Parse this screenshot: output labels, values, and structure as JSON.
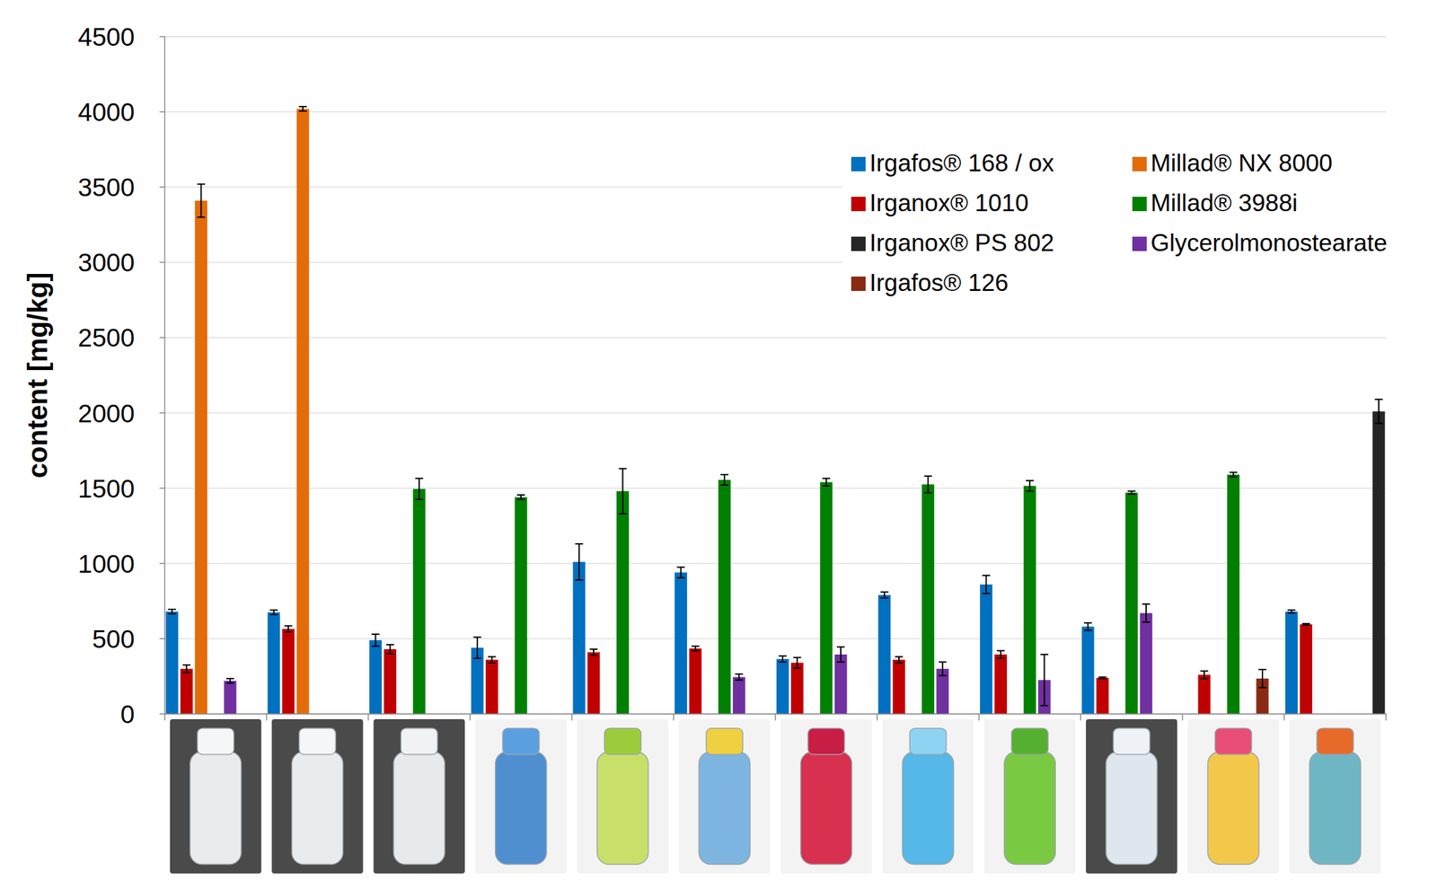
{
  "chart_data": {
    "type": "bar",
    "y_label": "content [mg/kg]",
    "categories": [
      null,
      null,
      null,
      null,
      null,
      null,
      null,
      null,
      null,
      null,
      null,
      null
    ],
    "series": [
      {
        "name": "Irgafos® 168 / ox",
        "color": "#0070c0",
        "values": [
          680,
          675,
          490,
          440,
          1010,
          940,
          365,
          790,
          860,
          580,
          null,
          680
        ],
        "errors": [
          15,
          15,
          40,
          70,
          120,
          35,
          20,
          20,
          60,
          25,
          null,
          10
        ]
      },
      {
        "name": "Irganox® 1010",
        "color": "#c00000",
        "values": [
          300,
          565,
          430,
          360,
          410,
          435,
          340,
          360,
          395,
          240,
          260,
          595
        ],
        "errors": [
          25,
          20,
          30,
          20,
          20,
          15,
          35,
          20,
          25,
          5,
          25,
          5
        ]
      },
      {
        "name": "Irganox® PS 802",
        "color": "#262626",
        "values": [
          null,
          null,
          null,
          null,
          null,
          null,
          null,
          null,
          null,
          null,
          null,
          2010
        ],
        "errors": [
          null,
          null,
          null,
          null,
          null,
          null,
          null,
          null,
          null,
          null,
          null,
          80
        ]
      },
      {
        "name": "Irgafos® 126",
        "color": "#8b2a14",
        "values": [
          null,
          null,
          null,
          null,
          null,
          null,
          null,
          null,
          null,
          null,
          235,
          null
        ],
        "errors": [
          null,
          null,
          null,
          null,
          null,
          null,
          null,
          null,
          null,
          null,
          60,
          null
        ]
      },
      {
        "name": "Millad® NX 8000",
        "color": "#e36c09",
        "values": [
          3410,
          4020,
          null,
          null,
          null,
          null,
          null,
          null,
          null,
          null,
          null,
          null
        ],
        "errors": [
          110,
          15,
          null,
          null,
          null,
          null,
          null,
          null,
          null,
          null,
          null,
          null
        ]
      },
      {
        "name": "Millad® 3988i",
        "color": "#008000",
        "values": [
          null,
          null,
          1495,
          1440,
          1480,
          1555,
          1540,
          1525,
          1515,
          1470,
          1590,
          null
        ],
        "errors": [
          null,
          null,
          70,
          15,
          150,
          35,
          25,
          55,
          35,
          10,
          15,
          null
        ]
      },
      {
        "name": "Glycerolmonostearate",
        "color": "#7030a0",
        "values": [
          220,
          null,
          null,
          null,
          null,
          245,
          395,
          300,
          225,
          670,
          null,
          null
        ],
        "errors": [
          15,
          null,
          null,
          null,
          null,
          20,
          50,
          45,
          170,
          60,
          null,
          null
        ]
      }
    ],
    "ylim": [
      0,
      4500
    ],
    "yticks": [
      0,
      500,
      1000,
      1500,
      2000,
      2500,
      3000,
      3500,
      4000,
      4500
    ],
    "grid": true,
    "legend": "upper right",
    "tick_labels": "y"
  }
}
